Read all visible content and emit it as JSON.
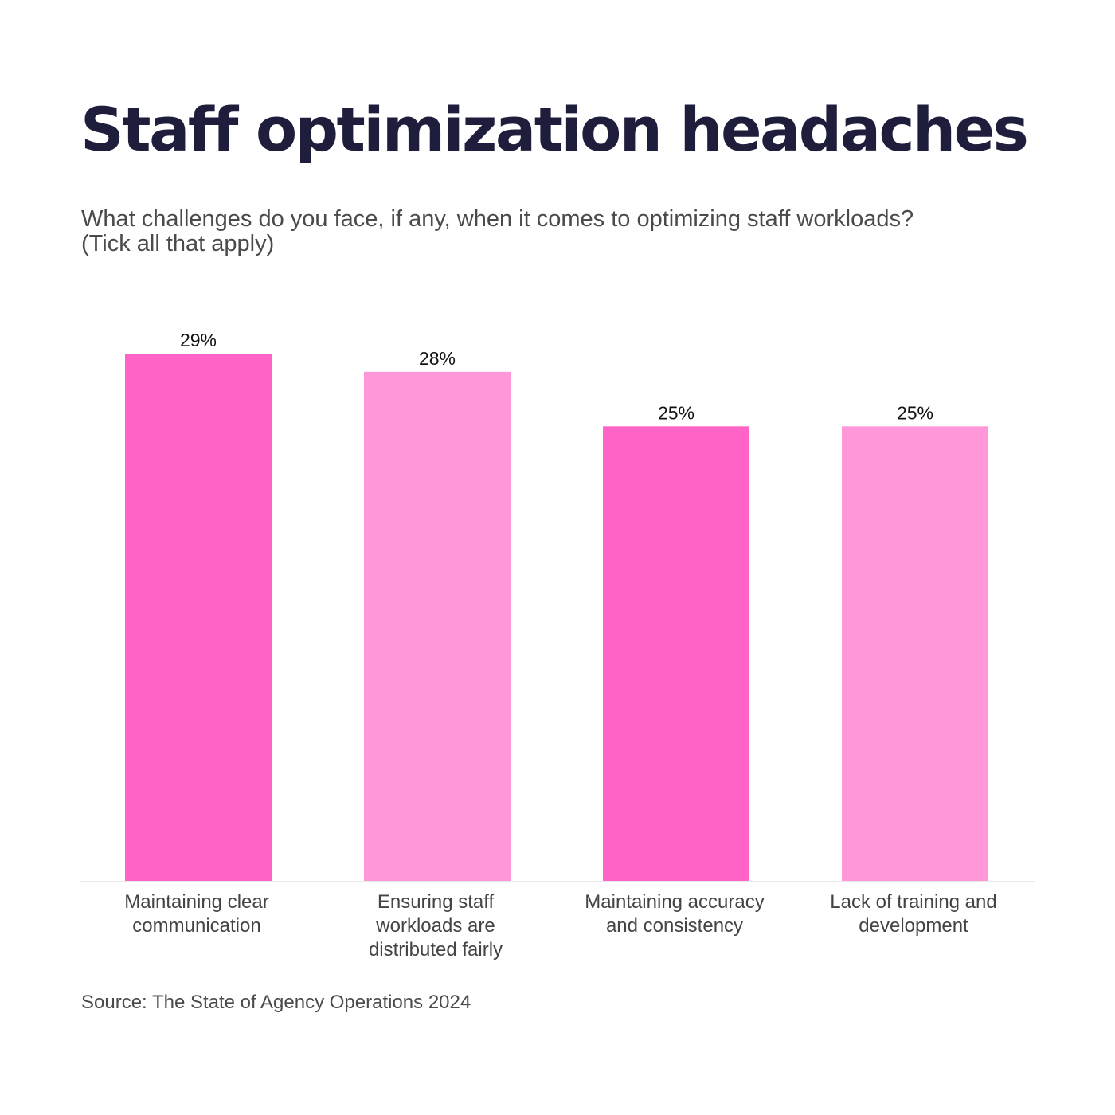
{
  "title": "Staff optimization headaches",
  "subtitle": "What challenges do you face, if any, when it comes to optimizing staff workloads? (Tick all that apply)",
  "source": "Source: The State of Agency Operations 2024",
  "colors": {
    "title": "#1e1d3b",
    "bar_dark": "#ff63c5",
    "bar_light": "#ff97d8",
    "axis": "#e8e8e8"
  },
  "chart_data": {
    "type": "bar",
    "title": "Staff optimization headaches",
    "subtitle": "What challenges do you face, if any, when it comes to optimizing staff workloads? (Tick all that apply)",
    "xlabel": "",
    "ylabel": "",
    "categories": [
      "Maintaining clear communication",
      "Ensuring staff workloads are distributed fairly",
      "Maintaining accuracy and consistency",
      "Lack of training and development"
    ],
    "category_lines": [
      [
        "Maintaining clear",
        "communication"
      ],
      [
        "Ensuring staff",
        "workloads are",
        "distributed fairly"
      ],
      [
        "Maintaining accuracy",
        "and consistency"
      ],
      [
        "Lack of training and",
        "development"
      ]
    ],
    "values": [
      29,
      28,
      25,
      25
    ],
    "value_labels": [
      "29%",
      "28%",
      "25%",
      "25%"
    ],
    "unit": "%",
    "bar_colors": [
      "#ff63c5",
      "#ff97d8",
      "#ff63c5",
      "#ff97d8"
    ],
    "ylim": [
      0,
      29
    ],
    "grid": false,
    "legend": "none",
    "source": "Source: The State of Agency Operations 2024"
  }
}
